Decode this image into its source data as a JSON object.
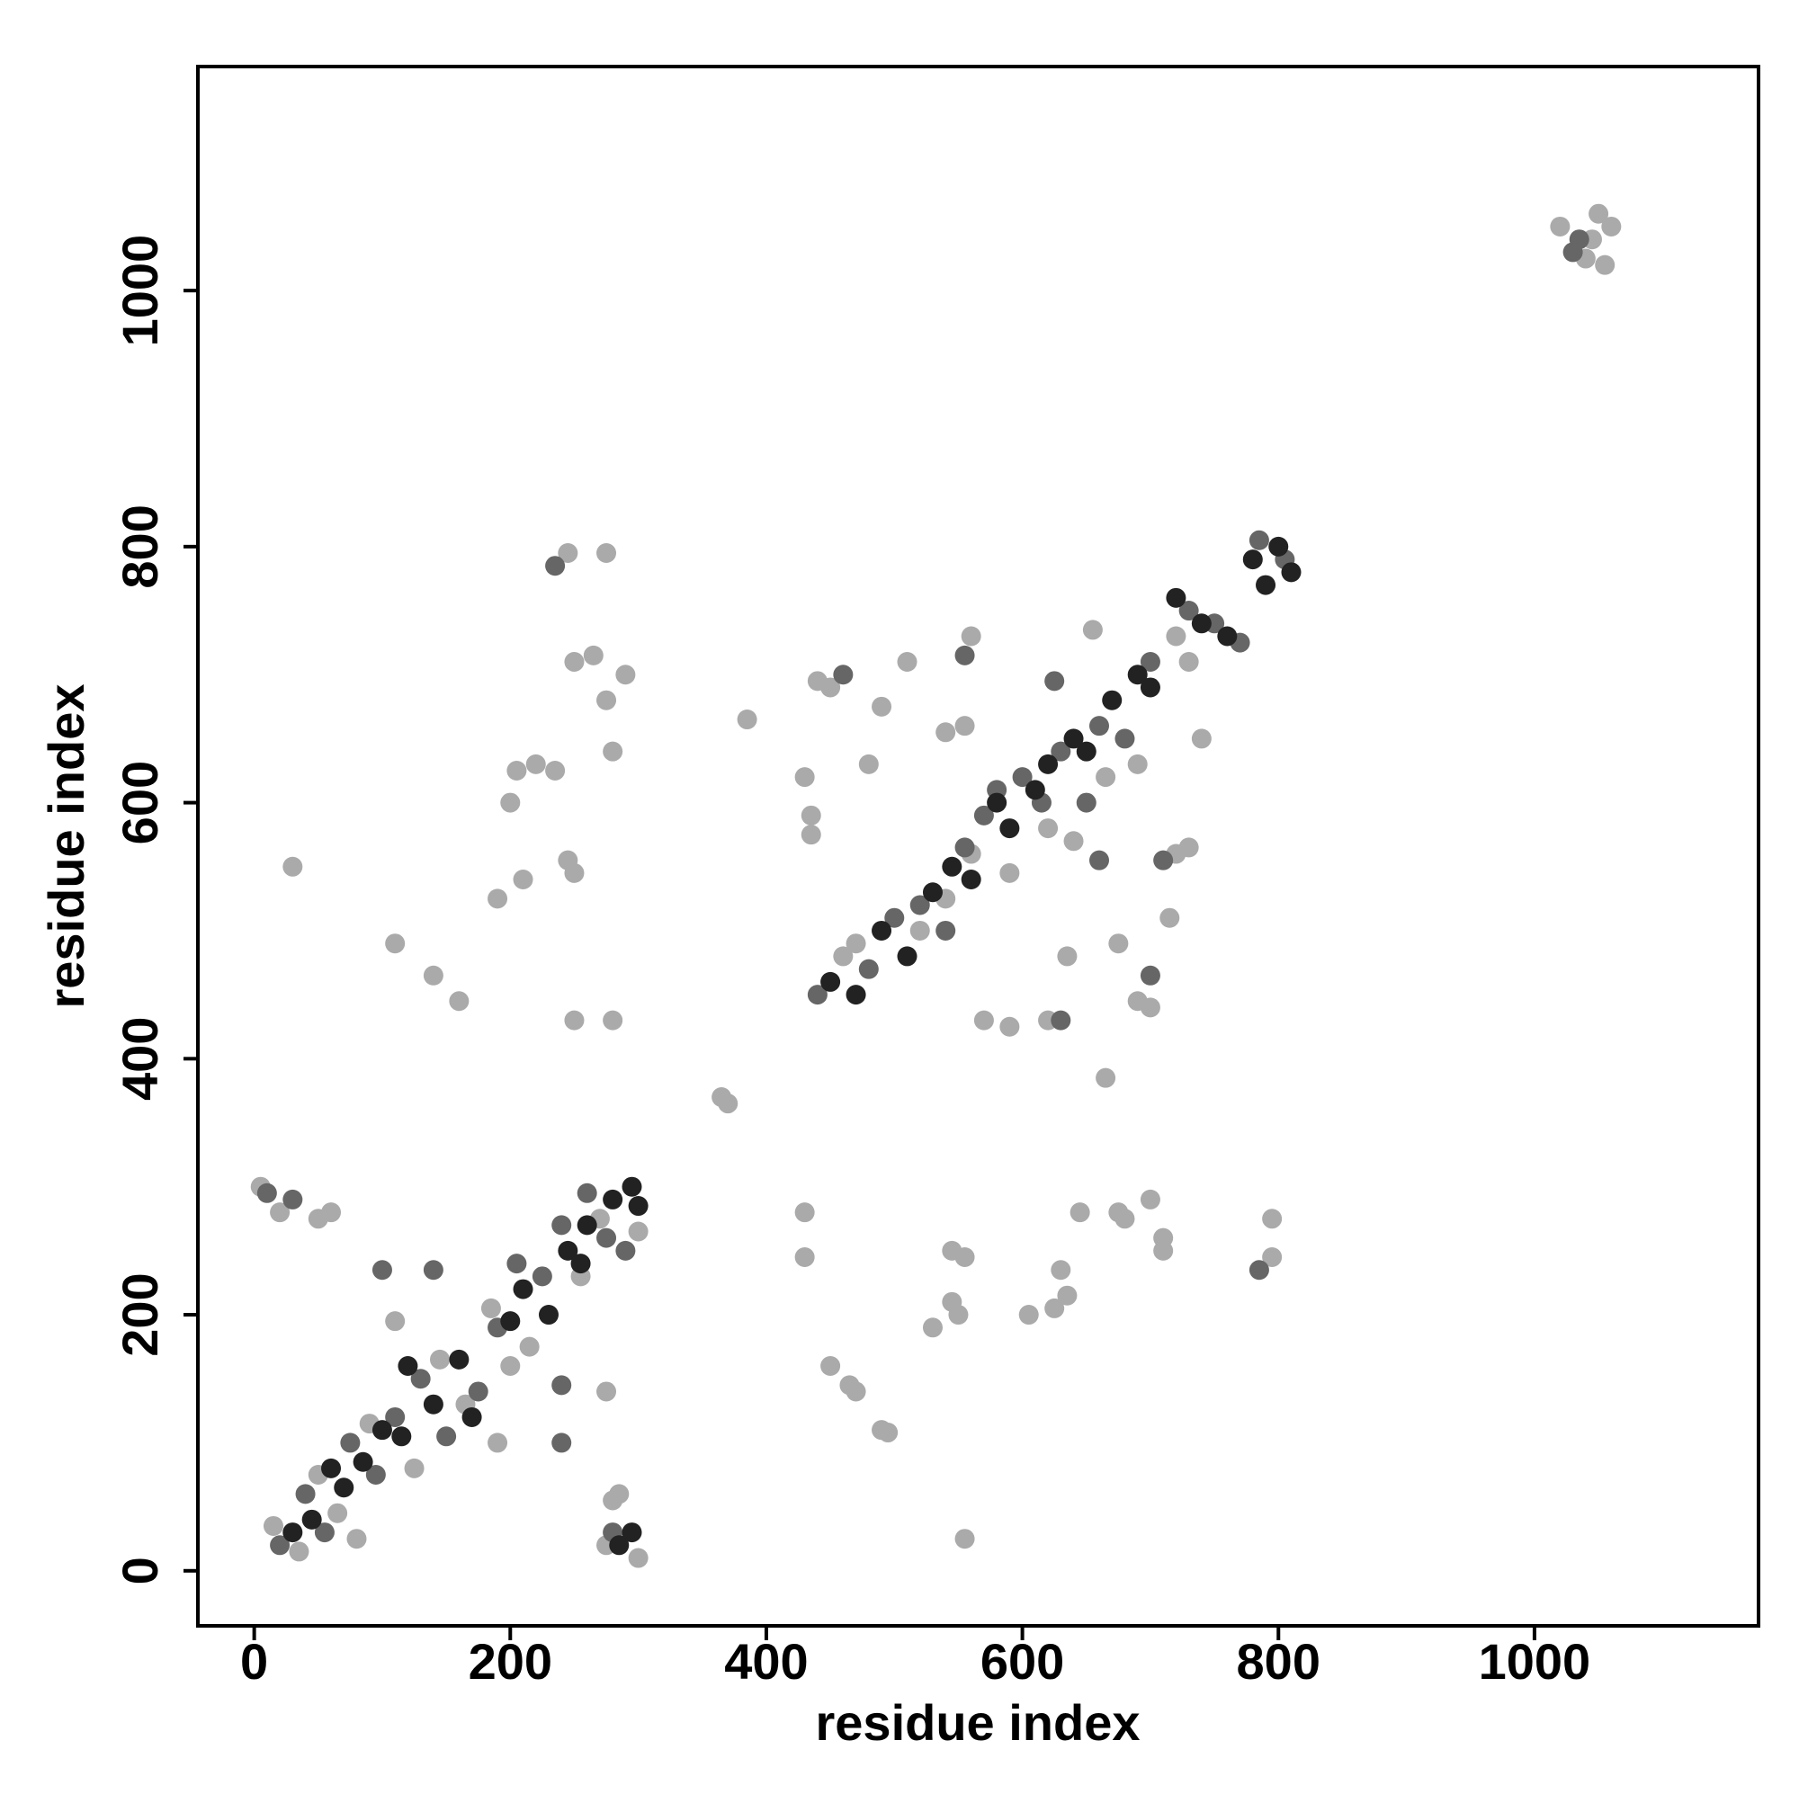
{
  "chart_data": {
    "type": "scatter",
    "xlabel": "residue index",
    "ylabel": "residue index",
    "xlim": [
      -44,
      1175
    ],
    "ylim": [
      -43,
      1175
    ],
    "xticks": [
      0,
      200,
      400,
      600,
      800,
      1000
    ],
    "yticks": [
      0,
      200,
      400,
      600,
      800,
      1000
    ],
    "series": [
      {
        "color": "#aaaaaa",
        "x": [
          15,
          35,
          50,
          65,
          80,
          90,
          125,
          145,
          165,
          185,
          200,
          215,
          255,
          270,
          300,
          5,
          20,
          60,
          50,
          110,
          140,
          160,
          190,
          210,
          200,
          205,
          220,
          235,
          245,
          250,
          250,
          280,
          250,
          265,
          275,
          280,
          290,
          245,
          275,
          30,
          110,
          190,
          275,
          280,
          285,
          275,
          300,
          365,
          370,
          385,
          430,
          435,
          435,
          430,
          430,
          450,
          465,
          470,
          490,
          495,
          440,
          450,
          480,
          490,
          510,
          555,
          545,
          555,
          545,
          530,
          550,
          605,
          625,
          630,
          635,
          645,
          675,
          680,
          700,
          710,
          710,
          795,
          795,
          570,
          590,
          620,
          635,
          665,
          675,
          690,
          700,
          715,
          720,
          730,
          740,
          730,
          720,
          655,
          560,
          540,
          555,
          460,
          470,
          520,
          540,
          560,
          590,
          620,
          640,
          665,
          690,
          1020,
          1040,
          1055,
          1050,
          1060,
          1045
        ],
        "y": [
          35,
          15,
          75,
          45,
          25,
          115,
          80,
          165,
          130,
          205,
          160,
          175,
          230,
          275,
          265,
          300,
          280,
          280,
          275,
          490,
          465,
          445,
          525,
          540,
          600,
          625,
          630,
          625,
          555,
          545,
          430,
          430,
          710,
          715,
          680,
          640,
          700,
          795,
          795,
          550,
          195,
          100,
          140,
          55,
          60,
          20,
          10,
          370,
          365,
          665,
          620,
          590,
          575,
          280,
          245,
          160,
          145,
          140,
          110,
          108,
          695,
          690,
          630,
          675,
          710,
          25,
          250,
          245,
          210,
          190,
          200,
          200,
          205,
          235,
          215,
          280,
          280,
          275,
          290,
          250,
          260,
          245,
          275,
          430,
          425,
          430,
          480,
          385,
          490,
          445,
          440,
          510,
          560,
          565,
          650,
          710,
          730,
          735,
          730,
          655,
          660,
          480,
          490,
          500,
          525,
          560,
          545,
          580,
          570,
          620,
          630,
          1050,
          1025,
          1020,
          1060,
          1050,
          1040
        ]
      },
      {
        "color": "#666666",
        "x": [
          20,
          40,
          55,
          75,
          95,
          110,
          130,
          150,
          175,
          190,
          205,
          225,
          240,
          260,
          275,
          290,
          10,
          30,
          280,
          240,
          240,
          100,
          140,
          235,
          460,
          440,
          480,
          500,
          520,
          540,
          555,
          570,
          600,
          615,
          630,
          660,
          680,
          700,
          730,
          750,
          770,
          785,
          805,
          1035,
          1030,
          555,
          660,
          710,
          700,
          785,
          630,
          625,
          580,
          650
        ],
        "y": [
          20,
          60,
          30,
          100,
          75,
          120,
          150,
          105,
          140,
          190,
          240,
          230,
          270,
          295,
          260,
          250,
          295,
          290,
          30,
          100,
          145,
          235,
          235,
          785,
          700,
          450,
          470,
          510,
          520,
          500,
          565,
          590,
          620,
          600,
          640,
          660,
          650,
          710,
          750,
          740,
          725,
          805,
          790,
          1040,
          1030,
          715,
          555,
          555,
          465,
          235,
          430,
          695,
          610,
          600
        ]
      },
      {
        "color": "#222222",
        "x": [
          30,
          45,
          60,
          70,
          85,
          100,
          115,
          120,
          140,
          160,
          170,
          200,
          210,
          230,
          245,
          255,
          260,
          280,
          295,
          300,
          295,
          285,
          450,
          470,
          490,
          510,
          530,
          545,
          560,
          580,
          590,
          610,
          620,
          640,
          650,
          670,
          690,
          700,
          720,
          740,
          760,
          780,
          800,
          810,
          790
        ],
        "y": [
          30,
          40,
          80,
          65,
          85,
          110,
          105,
          160,
          130,
          165,
          120,
          195,
          220,
          200,
          250,
          240,
          270,
          290,
          300,
          285,
          30,
          20,
          460,
          450,
          500,
          480,
          530,
          550,
          540,
          600,
          580,
          610,
          630,
          650,
          640,
          680,
          700,
          690,
          760,
          740,
          730,
          790,
          800,
          780,
          770
        ]
      }
    ]
  }
}
